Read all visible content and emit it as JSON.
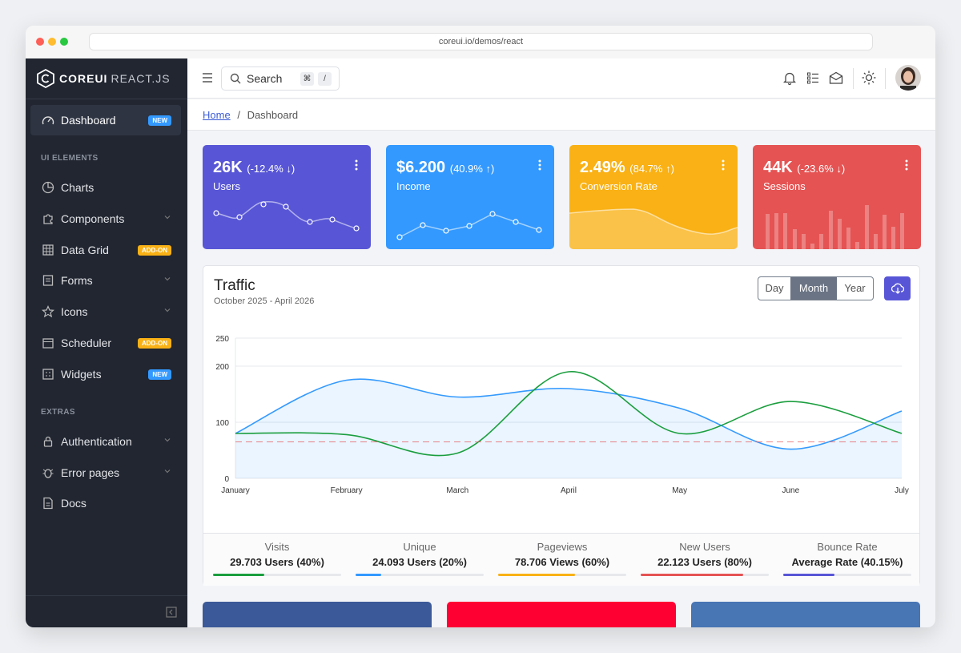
{
  "browser": {
    "url": "coreui.io/demos/react"
  },
  "sidebar": {
    "brand": "COREUI",
    "brand_sub": "REACT.JS",
    "dashboard": {
      "label": "Dashboard",
      "badge": "NEW"
    },
    "section_ui": "UI ELEMENTS",
    "items_ui": [
      {
        "label": "Charts"
      },
      {
        "label": "Components"
      },
      {
        "label": "Data Grid",
        "badge": "ADD-ON"
      },
      {
        "label": "Forms"
      },
      {
        "label": "Icons"
      },
      {
        "label": "Scheduler",
        "badge": "ADD-ON"
      },
      {
        "label": "Widgets",
        "badge": "NEW"
      }
    ],
    "section_extras": "EXTRAS",
    "items_extras": [
      {
        "label": "Authentication"
      },
      {
        "label": "Error pages"
      },
      {
        "label": "Docs"
      }
    ]
  },
  "header": {
    "search_placeholder": "Search",
    "kbd1": "⌘",
    "kbd2": "/"
  },
  "breadcrumb": {
    "home": "Home",
    "sep": "/",
    "current": "Dashboard"
  },
  "widgets": [
    {
      "value": "26K",
      "delta": "(-12.4% ↓)",
      "label": "Users",
      "color": "#5856d6"
    },
    {
      "value": "$6.200",
      "delta": "(40.9% ↑)",
      "label": "Income",
      "color": "#3399ff"
    },
    {
      "value": "2.49%",
      "delta": "(84.7% ↑)",
      "label": "Conversion Rate",
      "color": "#f9b115"
    },
    {
      "value": "44K",
      "delta": "(-23.6% ↓)",
      "label": "Sessions",
      "color": "#e55353"
    }
  ],
  "traffic": {
    "title": "Traffic",
    "subtitle": "October 2025 - April 2026",
    "ranges": [
      "Day",
      "Month",
      "Year"
    ],
    "active_range": "Month"
  },
  "chart_data": {
    "type": "line",
    "title": "",
    "categories": [
      "January",
      "February",
      "March",
      "April",
      "May",
      "June",
      "July"
    ],
    "yticks": [
      0,
      100,
      200,
      250
    ],
    "ylim": [
      0,
      250
    ],
    "series": [
      {
        "values": [
          80,
          175,
          145,
          160,
          125,
          52,
          120
        ],
        "color": "#3399ff",
        "fill": true
      },
      {
        "values": [
          80,
          78,
          45,
          190,
          80,
          137,
          80
        ],
        "color": "#1b9e3e"
      },
      {
        "values": [
          65,
          65,
          65,
          65,
          65,
          65,
          65
        ],
        "color": "#e55353",
        "dashed": true
      }
    ],
    "grid": true
  },
  "stats": [
    {
      "title": "Visits",
      "value": "29.703 Users (40%)",
      "percent": 40,
      "color": "#1b9e3e"
    },
    {
      "title": "Unique",
      "value": "24.093 Users (20%)",
      "percent": 20,
      "color": "#3399ff"
    },
    {
      "title": "Pageviews",
      "value": "78.706 Views (60%)",
      "percent": 60,
      "color": "#f9b115"
    },
    {
      "title": "New Users",
      "value": "22.123 Users (80%)",
      "percent": 80,
      "color": "#e55353"
    },
    {
      "title": "Bounce Rate",
      "value": "Average Rate (40.15%)",
      "percent": 40.15,
      "color": "#5856d6"
    }
  ],
  "social_colors": [
    "#3b5998",
    "#ff0033",
    "#4875b4"
  ]
}
